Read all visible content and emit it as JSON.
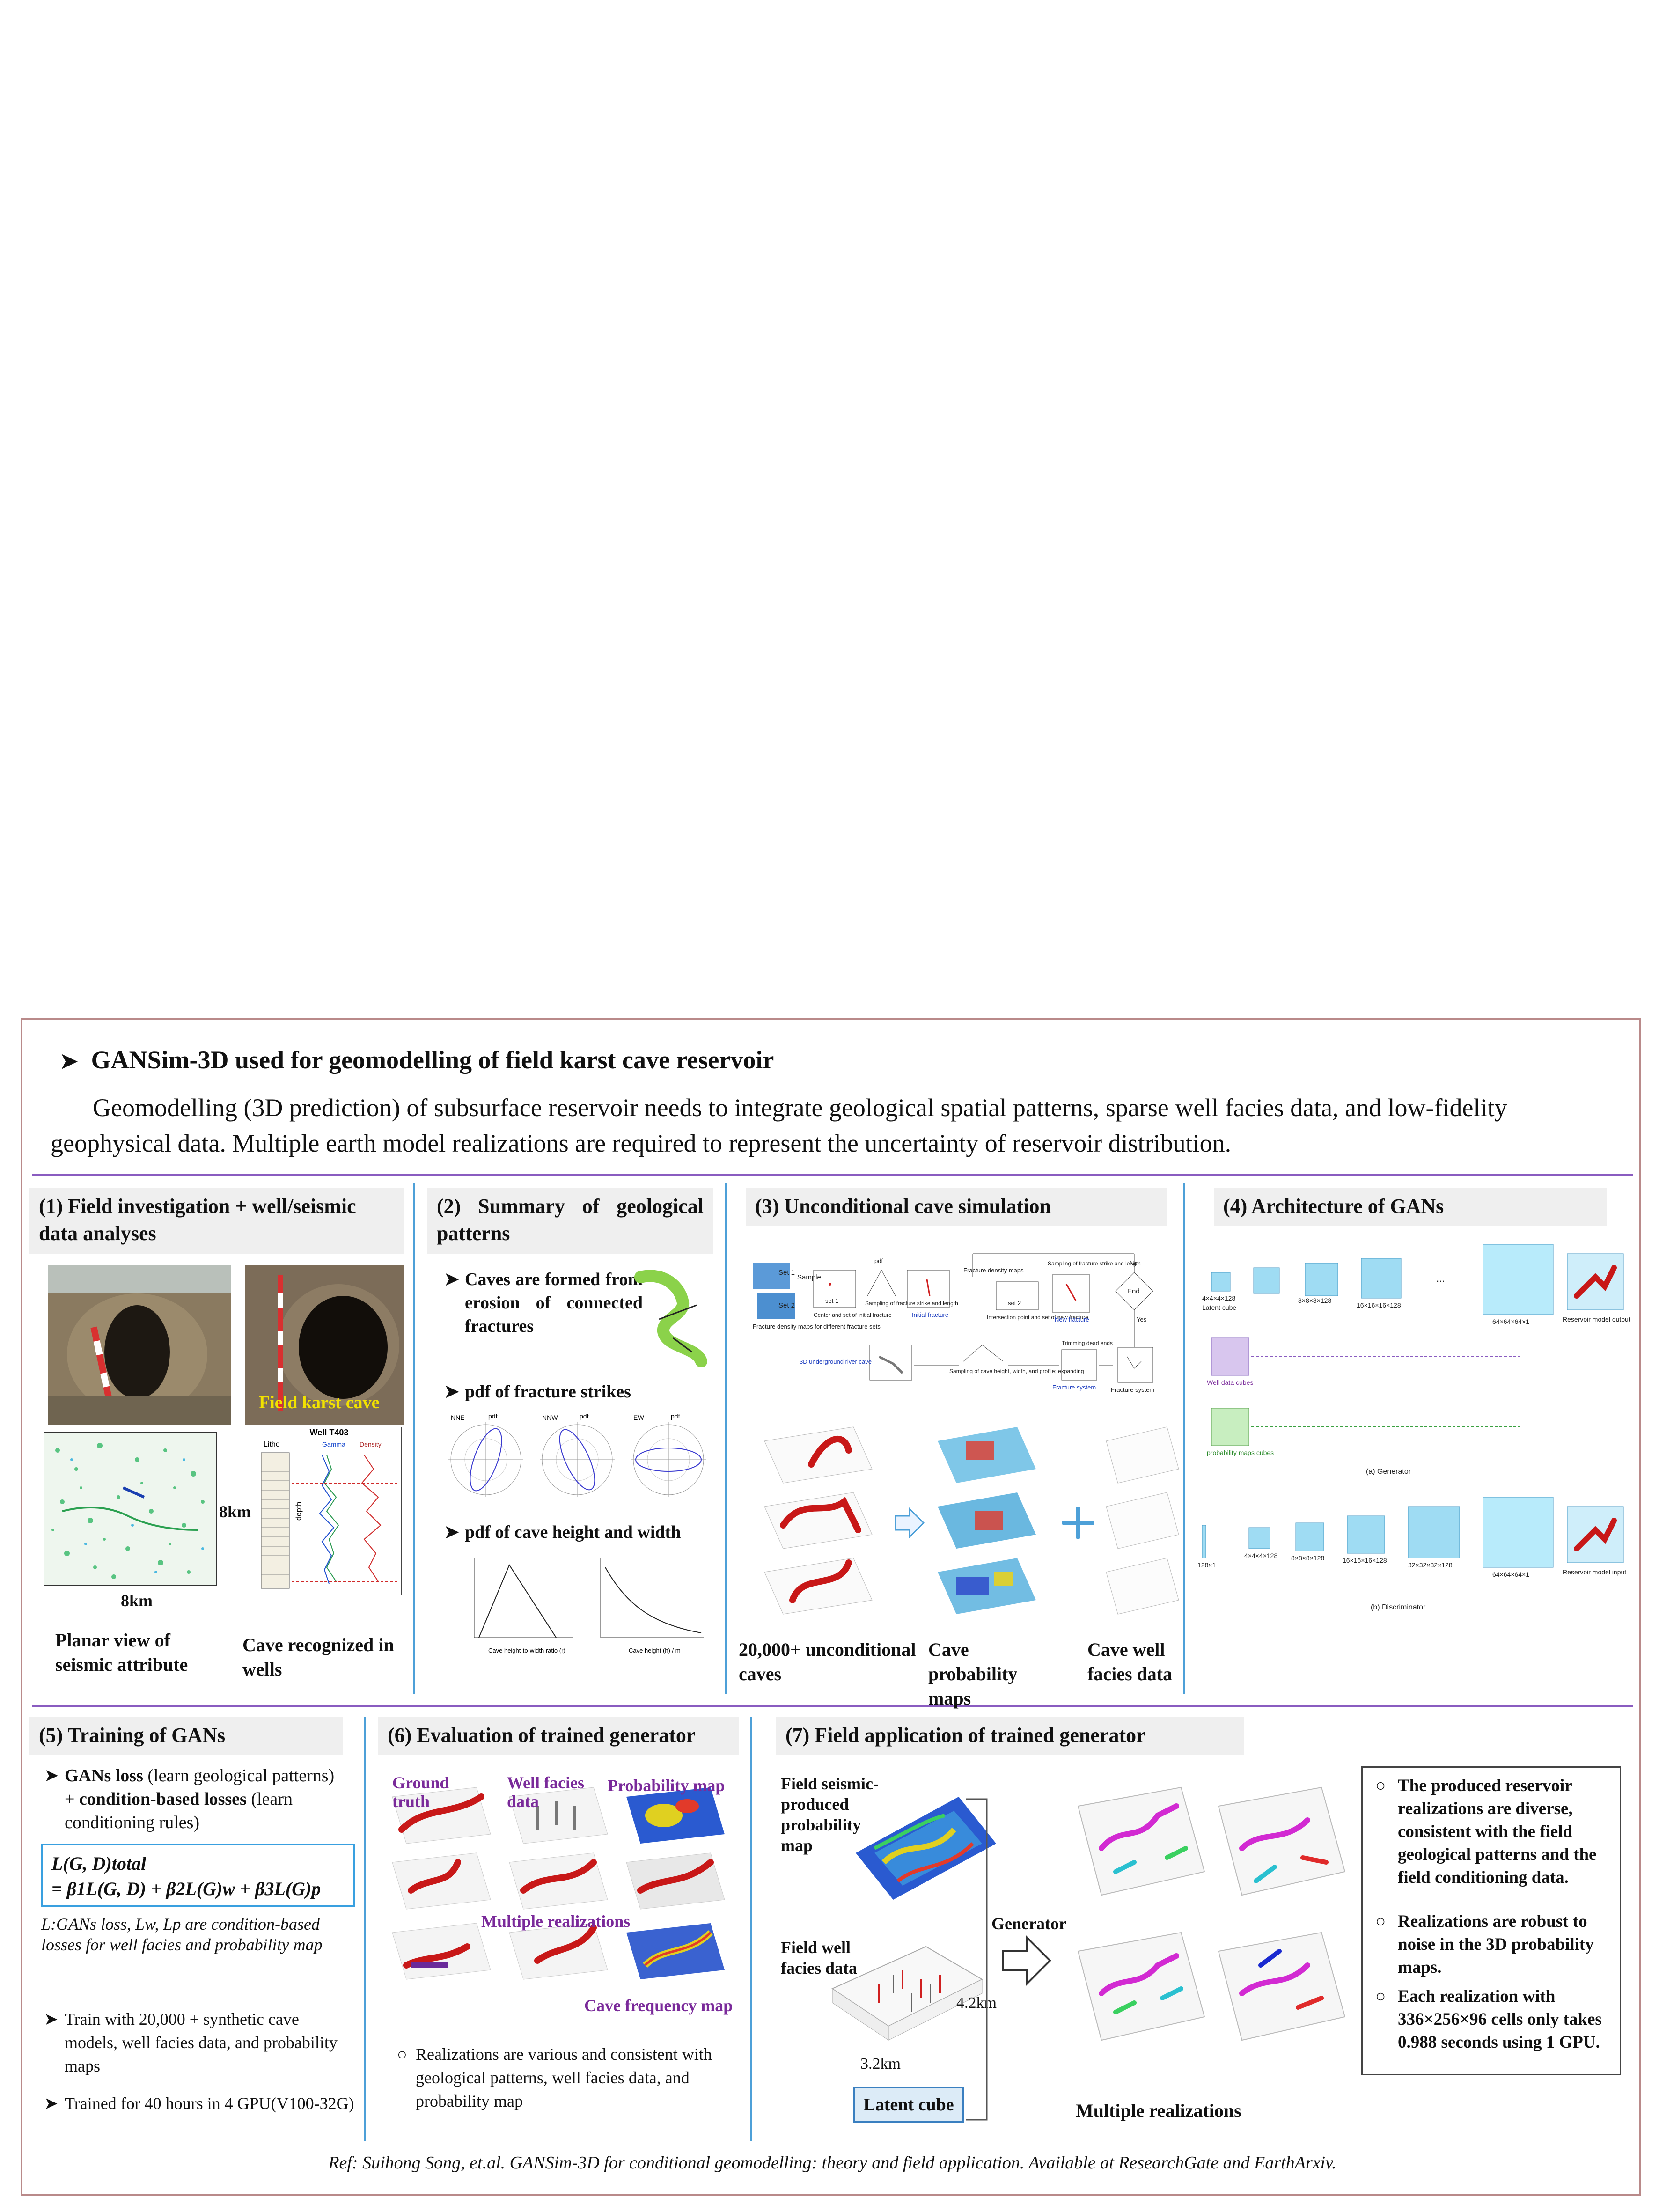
{
  "header": {
    "title": "GANSim-3D used for geomodelling of field karst cave reservoir",
    "intro": "Geomodelling (3D prediction) of subsurface reservoir needs to integrate geological spatial patterns, sparse well facies data, and low-fidelity geophysical data. Multiple earth model realizations are required to represent the uncertainty of reservoir distribution."
  },
  "s1": {
    "title": "(1) Field investigation + well/seismic data analyses",
    "field_label": "Field karst cave",
    "well_title": "Well T403",
    "litho": "Litho",
    "gamma": "Gamma",
    "density": "Density",
    "depth": "depth",
    "dim_y": "8km",
    "dim_x": "8km",
    "cap_seismic": "Planar view of seismic attribute",
    "cap_wells": "Cave recognized in wells"
  },
  "s2": {
    "title": "(2) Summary of geological patterns",
    "b1": "Caves are formed from erosion of connected fractures",
    "b2": "pdf of fracture strikes",
    "b3": "pdf of cave height and width",
    "rose_labels": [
      "NNE",
      "NNW",
      "EW"
    ],
    "pdf_label": "pdf",
    "xlab_left": "Cave height-to-width ratio (r)",
    "xlab_right": "Cave height (h) / m"
  },
  "s3": {
    "title": "(3) Unconditional cave simulation",
    "flow": {
      "set1": "Set 1",
      "set2": "Set 2",
      "density_maps": "Fracture density maps for different fracture sets",
      "sample": "Sample",
      "set1_box": "set 1",
      "center": "Center and set of initial fracture",
      "sampling": "Sampling of fracture strike and length",
      "initial": "Initial fracture",
      "fdm": "Fracture density maps",
      "set2_box": "set 2",
      "intersection": "Intersection point and set of new fracture",
      "sampling2": "Sampling of fracture strike and length",
      "new_fracture": "New fracture",
      "end": "End",
      "no": "No",
      "yes": "Yes",
      "river": "3D underground river cave",
      "cave_sampling": "Sampling of cave height, width, and profile; expanding",
      "trimming": "Trimming dead ends",
      "system": "Fracture system",
      "system2": "Fracture system"
    },
    "cap_caves": "20,000+ unconditional caves",
    "cap_prob": "Cave probability maps",
    "cap_well": "Cave well facies data"
  },
  "s4": {
    "title": "(4) Architecture of GANs",
    "gen_label": "(a) Generator",
    "disc_label": "(b) Discriminator",
    "dims_gen": [
      "4×4×4×128",
      "8×8×8×128",
      "16×16×16×128",
      "64×64×64×1"
    ],
    "dims_disc": [
      "128×1",
      "4×4×4×128",
      "8×8×8×128",
      "16×16×16×128",
      "32×32×32×128",
      "64×64×64×1"
    ],
    "latent": "Latent cube",
    "well_cubes": "Well data cubes",
    "prob_cubes": "probability maps cubes",
    "output": "Reservoir model output",
    "output2": "Reservoir model input"
  },
  "s5": {
    "title": "(5) Training of GANs",
    "b1_bold1": "GANs loss",
    "b1_t1": " (learn geological patterns) + ",
    "b1_bold2": "condition-based losses",
    "b1_t2": " (learn conditioning rules)",
    "eq1": "L(G, D)total",
    "eq2": "= β1L(G, D) + β2L(G)w + β3L(G)p",
    "note": "L:GANs loss, Lw, Lp are condition-based losses for well facies and probability map",
    "b2": "Train with 20,000 + synthetic cave models, well facies data, and probability maps",
    "b3": "Trained for 40 hours in 4 GPU(V100-32G)"
  },
  "s6": {
    "title": "(6) Evaluation of trained generator",
    "ground": "Ground truth",
    "well": "Well facies data",
    "prob": "Probability map",
    "multi": "Multiple realizations",
    "freq": "Cave frequency map",
    "bullet": "Realizations are various and consistent with geological patterns, well facies data, and probability map"
  },
  "s7": {
    "title": "(7) Field application of trained generator",
    "seismic": "Field seismic-produced probability map",
    "wellfac": "Field well facies data",
    "dim1": "4.2km",
    "dim2": "3.2km",
    "latent": "Latent cube",
    "generator": "Generator",
    "multi": "Multiple realizations",
    "b1": "The produced reservoir realizations are diverse, consistent with the field geological patterns and the field conditioning data.",
    "b2": "Realizations are robust to noise in the 3D probability maps.",
    "b3": "Each realization with 336×256×96 cells only takes 0.988 seconds using 1 GPU."
  },
  "ref": "Ref: Suihong Song, et.al. GANSim-3D for conditional geomodelling: theory and field application. Available at ResearchGate and EarthArxiv."
}
